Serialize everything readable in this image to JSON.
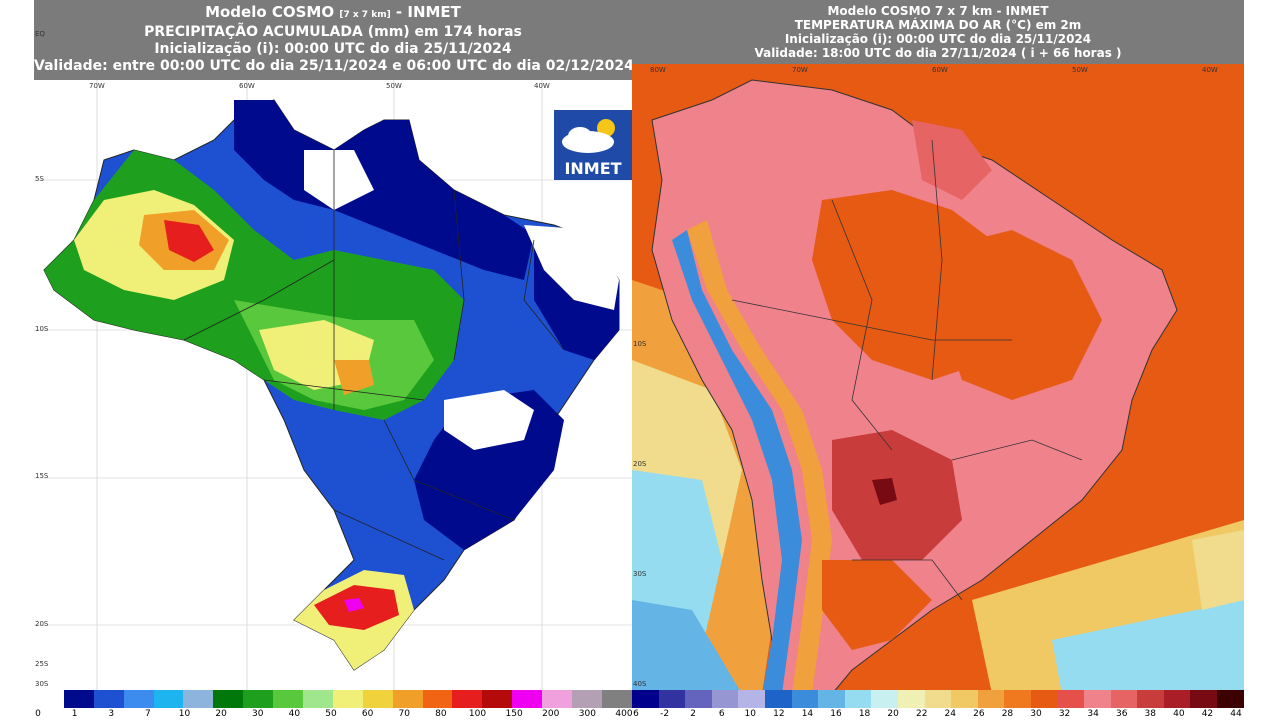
{
  "left": {
    "title_prefix": "Modelo COSMO",
    "title_res": "[7 x 7 km]",
    "title_suffix": "- INMET",
    "line2": "PRECIPITAÇÃO ACUMULADA (mm) em 174 horas",
    "line3": "Inicialização (i): 00:00 UTC do dia 25/11/2024",
    "line4": "Validade: entre 00:00 UTC do dia 25/11/2024 e 06:00 UTC do dia 02/12/2024",
    "logo_text": "INMET",
    "lon_ticks": [
      "70W",
      "60W",
      "50W",
      "40W"
    ],
    "lat_ticks": [
      "EQ",
      "5S",
      "10S",
      "15S",
      "20S",
      "25S",
      "30S"
    ],
    "legend": {
      "colors": [
        "#ffffff",
        "#000a8c",
        "#1e50d2",
        "#3c8cf0",
        "#1eb4f0",
        "#8cb4dc",
        "#00780a",
        "#1ea01e",
        "#5ac83c",
        "#a0e68c",
        "#f0f078",
        "#f0d23c",
        "#f0a028",
        "#f06414",
        "#e61e1e",
        "#b40a0a",
        "#f000f0",
        "#f0a0dc",
        "#b4a0b4",
        "#808080"
      ],
      "labels": [
        "0",
        "1",
        "3",
        "7",
        "10",
        "20",
        "30",
        "40",
        "50",
        "60",
        "70",
        "80",
        "100",
        "150",
        "200",
        "300",
        "400"
      ]
    }
  },
  "right": {
    "title": "Modelo COSMO 7 x 7 km - INMET",
    "line2": "TEMPERATURA MÁXIMA DO AR (°C) em 2m",
    "line3": "Inicialização (i): 00:00 UTC do dia 25/11/2024",
    "line4": "Validade: 18:00 UTC do dia 27/11/2024 ( i + 66 horas )",
    "lon_ticks": [
      "80W",
      "70W",
      "60W",
      "50W",
      "40W"
    ],
    "lat_ticks": [
      "10S",
      "20S",
      "30S",
      "40S"
    ],
    "legend": {
      "colors": [
        "#00008c",
        "#3232a0",
        "#6464be",
        "#9696d2",
        "#b4b4e6",
        "#1e64c8",
        "#3c8cdc",
        "#64b4e6",
        "#96dcf0",
        "#c8f0f0",
        "#f0f0b4",
        "#f0dc8c",
        "#f0c864",
        "#f0a03c",
        "#f0781e",
        "#e65a14",
        "#e6504b",
        "#f0828c",
        "#e66464",
        "#c83c3c",
        "#aa1e28",
        "#780a14",
        "#3c0000"
      ],
      "labels": [
        "6",
        "-2",
        "2",
        "6",
        "10",
        "12",
        "14",
        "16",
        "18",
        "20",
        "22",
        "24",
        "26",
        "28",
        "30",
        "32",
        "34",
        "36",
        "38",
        "40",
        "42",
        "44"
      ]
    }
  }
}
